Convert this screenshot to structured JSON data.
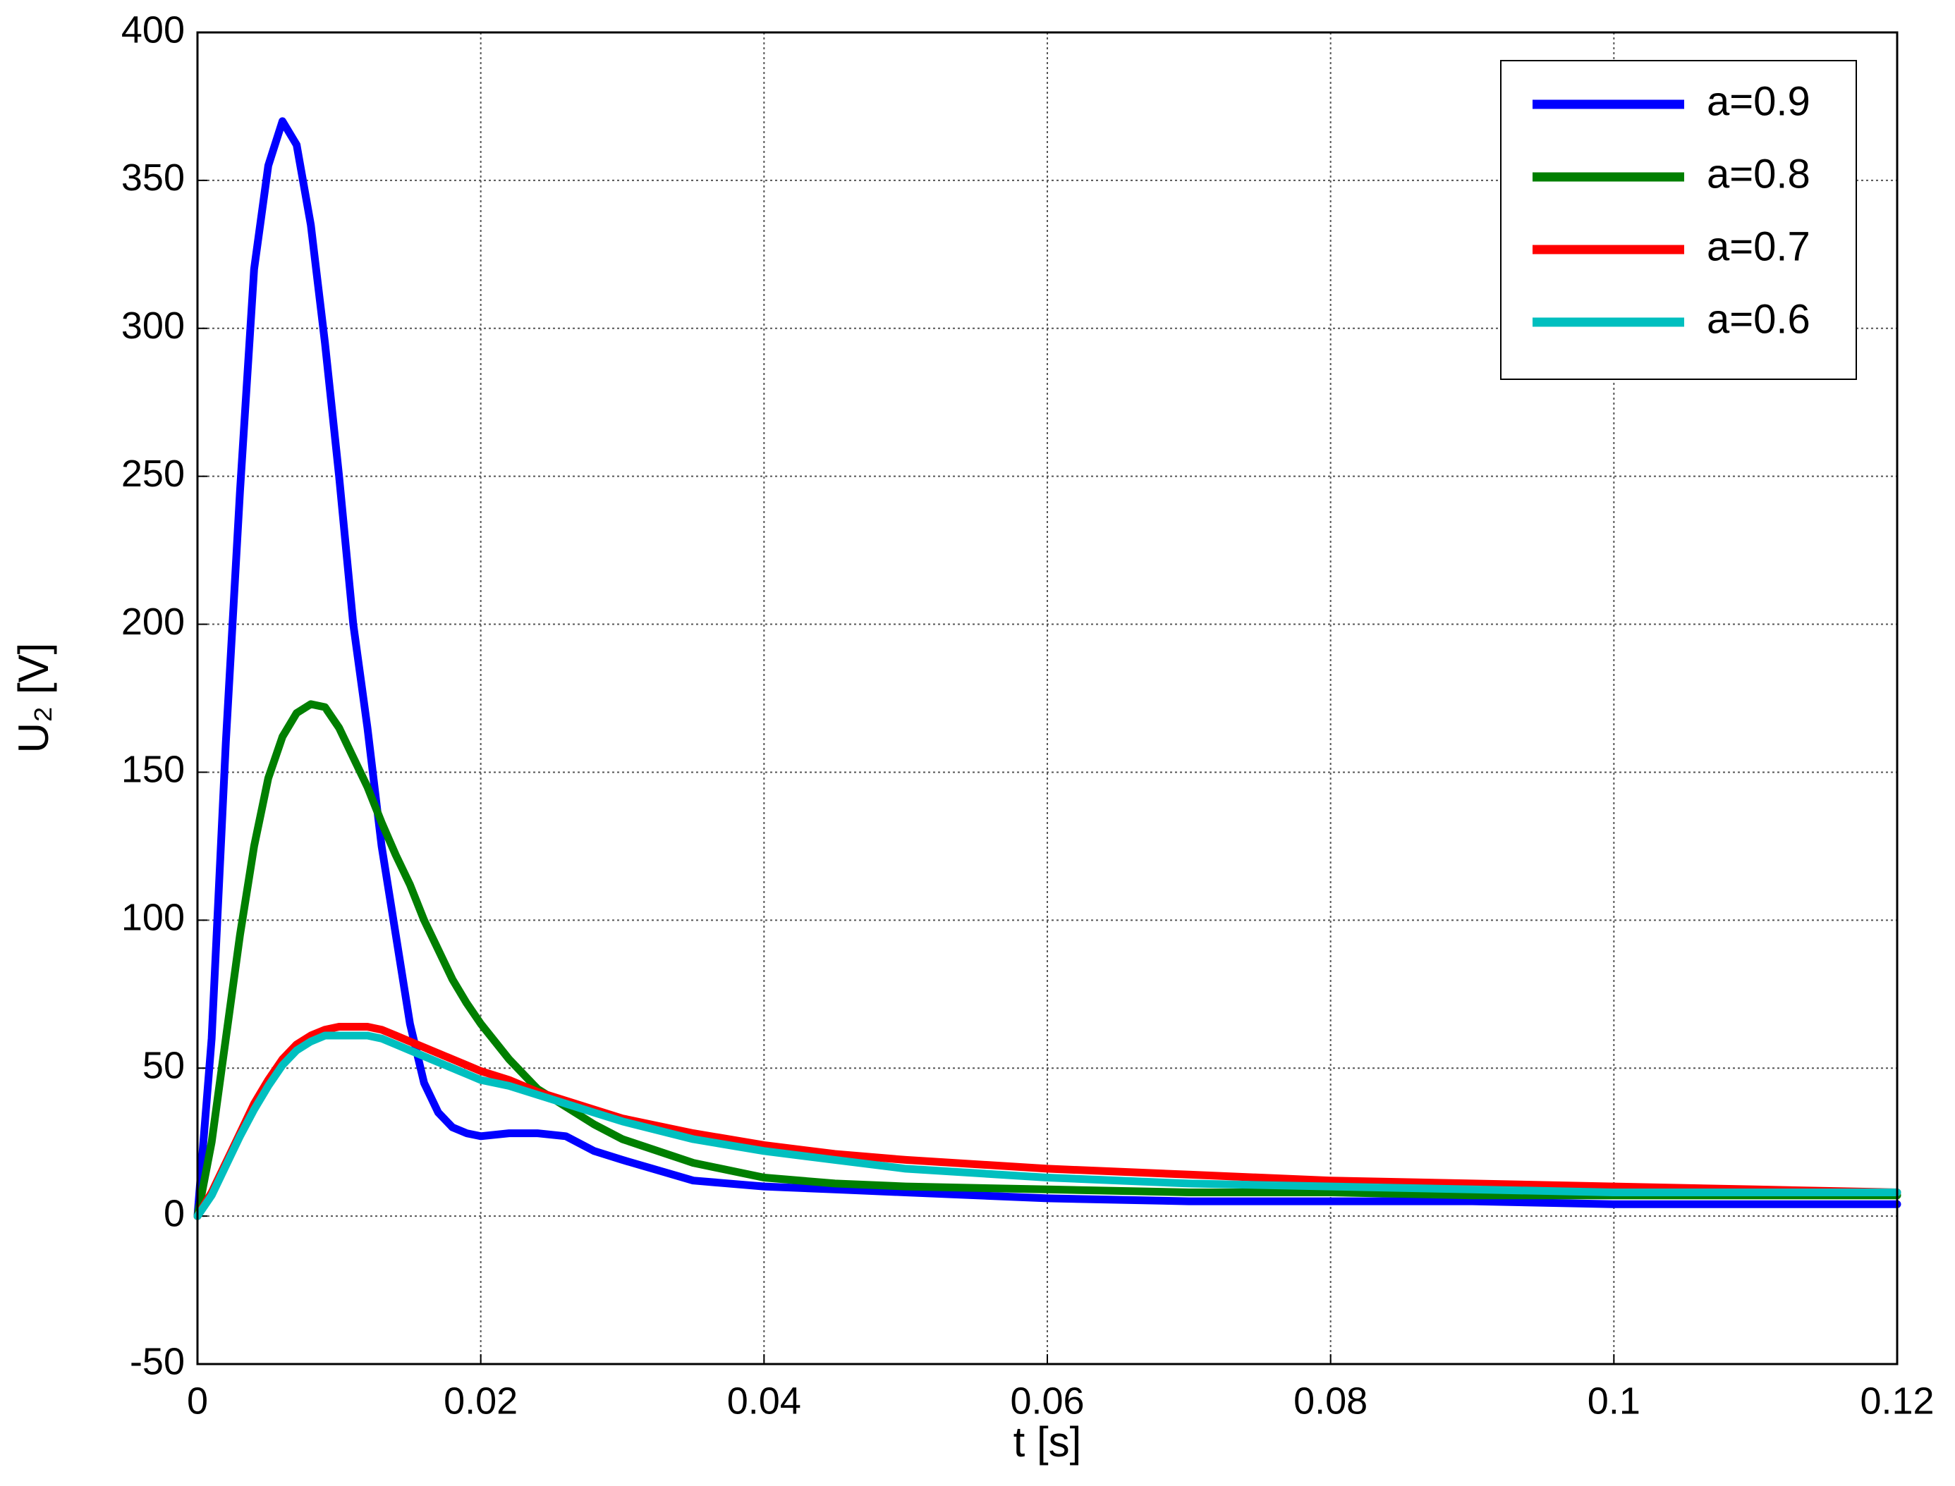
{
  "chart_data": {
    "type": "line",
    "xlabel": "t  [s]",
    "ylabel": "U₂ [V]",
    "x": [
      0,
      0.001,
      0.002,
      0.003,
      0.004,
      0.005,
      0.006,
      0.007,
      0.008,
      0.009,
      0.01,
      0.011,
      0.012,
      0.013,
      0.014,
      0.015,
      0.016,
      0.017,
      0.018,
      0.019,
      0.02,
      0.022,
      0.024,
      0.026,
      0.028,
      0.03,
      0.035,
      0.04,
      0.045,
      0.05,
      0.06,
      0.07,
      0.08,
      0.09,
      0.1,
      0.11,
      0.12
    ],
    "series": [
      {
        "name": "a=0.9",
        "color": "#0000ff",
        "values": [
          0,
          60,
          160,
          245,
          320,
          355,
          370,
          362,
          335,
          295,
          250,
          200,
          165,
          125,
          95,
          65,
          45,
          35,
          30,
          28,
          27,
          28,
          28,
          27,
          22,
          19,
          12,
          10,
          9,
          8,
          6,
          5,
          5,
          5,
          4,
          4,
          4
        ]
      },
      {
        "name": "a=0.8",
        "color": "#007f00",
        "values": [
          0,
          25,
          60,
          95,
          125,
          148,
          162,
          170,
          173,
          172,
          165,
          155,
          145,
          133,
          122,
          112,
          100,
          90,
          80,
          72,
          65,
          53,
          43,
          37,
          31,
          26,
          18,
          13,
          11,
          10,
          9,
          8,
          8,
          7,
          7,
          7,
          7
        ]
      },
      {
        "name": "a=0.7",
        "color": "#ff0000",
        "values": [
          0,
          8,
          18,
          28,
          38,
          46,
          53,
          58,
          61,
          63,
          64,
          64,
          64,
          63,
          61,
          59,
          57,
          55,
          53,
          51,
          49,
          46,
          42,
          39,
          36,
          33,
          28,
          24,
          21,
          19,
          16,
          14,
          12,
          11,
          10,
          9,
          8
        ]
      },
      {
        "name": "a=0.6",
        "color": "#00bfbf",
        "values": [
          0,
          7,
          17,
          27,
          36,
          44,
          51,
          56,
          59,
          61,
          61,
          61,
          61,
          60,
          58,
          56,
          54,
          52,
          50,
          48,
          46,
          44,
          41,
          38,
          35,
          32,
          26,
          22,
          19,
          16,
          13,
          11,
          10,
          9,
          8,
          8,
          8
        ]
      }
    ],
    "xlim": [
      0,
      0.12
    ],
    "xticks": [
      0,
      0.02,
      0.04,
      0.06,
      0.08,
      0.1,
      0.12
    ],
    "ylim": [
      -50,
      400
    ],
    "yticks": [
      -50,
      0,
      50,
      100,
      150,
      200,
      250,
      300,
      350,
      400
    ],
    "grid": true,
    "legend": "top-right"
  }
}
